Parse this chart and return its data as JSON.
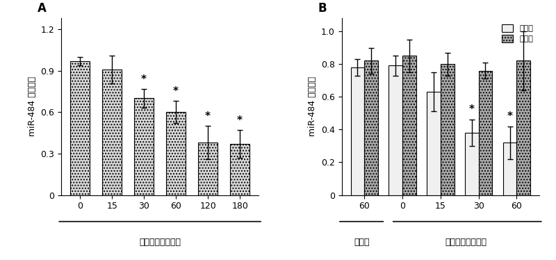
{
  "panel_A": {
    "title": "A",
    "categories": [
      "0",
      "15",
      "30",
      "60",
      "120",
      "180"
    ],
    "values": [
      0.97,
      0.91,
      0.7,
      0.6,
      0.38,
      0.37
    ],
    "errors": [
      0.03,
      0.1,
      0.07,
      0.08,
      0.12,
      0.1
    ],
    "sig": [
      false,
      false,
      true,
      true,
      true,
      true
    ],
    "ylabel": "miR-484 表达水平",
    "xlabel_main": "缺氧时间（分钟）",
    "ylim": [
      0,
      1.28
    ],
    "yticks": [
      0,
      0.3,
      0.6,
      0.9,
      1.2
    ]
  },
  "panel_B": {
    "title": "B",
    "group_labels": [
      "60",
      "0",
      "15",
      "30",
      "60"
    ],
    "group_header1": "对照组",
    "group_header2": "缺血时间（分钟）",
    "values_white": [
      0.78,
      0.79,
      0.63,
      0.38,
      0.32
    ],
    "values_gray": [
      0.82,
      0.85,
      0.8,
      0.76,
      0.82
    ],
    "errors_white": [
      0.05,
      0.06,
      0.12,
      0.08,
      0.1
    ],
    "errors_gray": [
      0.08,
      0.1,
      0.07,
      0.05,
      0.18
    ],
    "sig_white": [
      false,
      false,
      false,
      true,
      true
    ],
    "sig_gray": [
      false,
      false,
      false,
      false,
      false
    ],
    "ylabel": "miR-484 表达水平",
    "ylim": [
      0,
      1.08
    ],
    "yticks": [
      0,
      0.2,
      0.4,
      0.6,
      0.8,
      1.0
    ],
    "legend1": "危险区",
    "legend2": "远端区"
  },
  "bar_color_A": "#d8d8d8",
  "bar_color_white": "#f0f0f0",
  "bar_color_gray": "#aaaaaa",
  "fig_width": 8.0,
  "fig_height": 3.74,
  "background_color": "#ffffff"
}
